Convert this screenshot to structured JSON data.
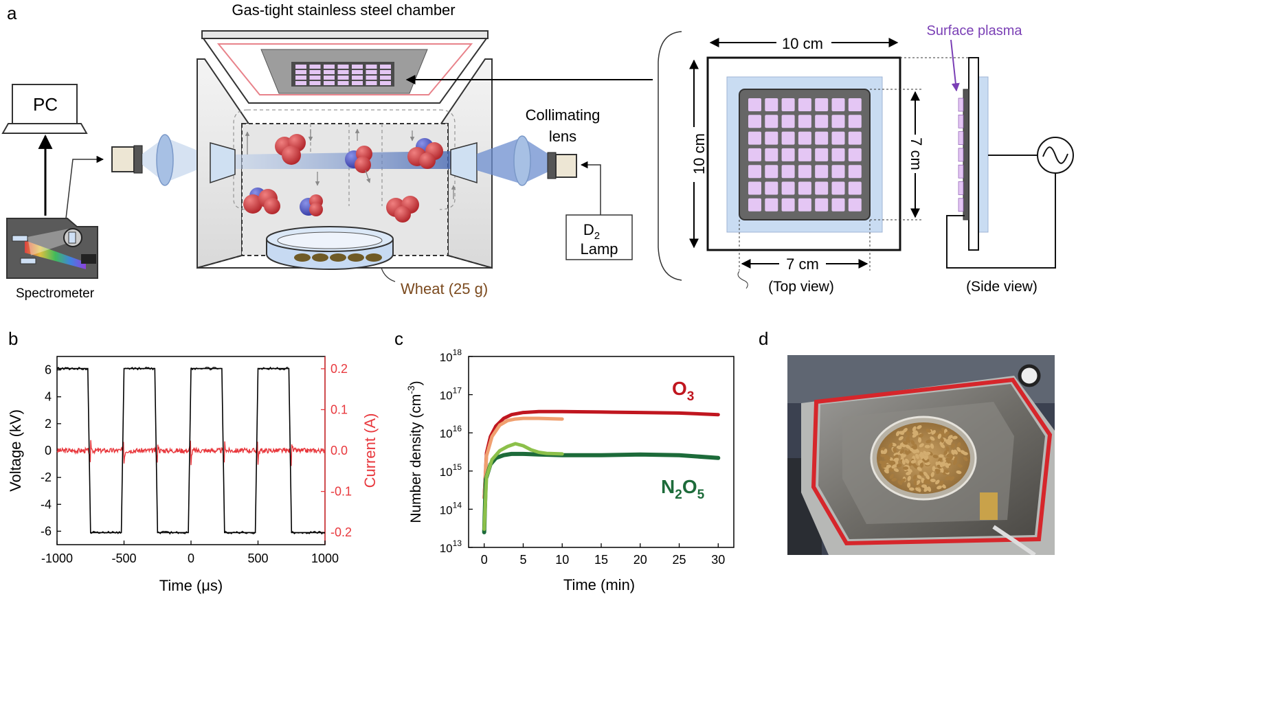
{
  "panel_a": {
    "letter": "a",
    "chamber_title": "Gas-tight stainless steel chamber",
    "pc_label": "PC",
    "spectrometer_label": "Spectrometer",
    "collimating_lens_label_1": "Collimating",
    "collimating_lens_label_2": "lens",
    "lamp_label_top": "D",
    "lamp_label_sub": "2",
    "lamp_label_bottom": "Lamp",
    "wheat_label": "Wheat (25 g)",
    "surface_plasma_label": "Surface plasma",
    "outer_width": "10 cm",
    "outer_height": "10 cm",
    "inner_height": "7 cm",
    "inner_width": "7 cm",
    "top_view_label": "(Top view)",
    "side_view_label": "(Side view)",
    "colors": {
      "plasma": "#e4c6f4",
      "plasma_label": "#7a3fb5",
      "wheat_text": "#7b4a1e",
      "beam": "#3b63b5"
    }
  },
  "panel_b": {
    "letter": "b",
    "xlabel": "Time (μs)",
    "ylabel_left": "Voltage (kV)",
    "ylabel_right": "Current (A)",
    "x_ticks": [
      "-1000",
      "-500",
      "0",
      "500",
      "1000"
    ],
    "y_left_ticks": [
      "6",
      "4",
      "2",
      "0",
      "-2",
      "-4",
      "-6"
    ],
    "y_right_ticks": [
      "0.2",
      "0.1",
      "0.0",
      "-0.1",
      "-0.2"
    ],
    "colors": {
      "voltage": "#000000",
      "current": "#e8383d"
    }
  },
  "panel_c": {
    "letter": "c",
    "xlabel": "Time (min)",
    "ylabel_main": "Number density (cm",
    "ylabel_exp": "-3",
    "ylabel_close": ")",
    "x_ticks": [
      "0",
      "5",
      "10",
      "15",
      "20",
      "25",
      "30"
    ],
    "y_base": "10",
    "y_exponents": [
      "13",
      "14",
      "15",
      "16",
      "17",
      "18"
    ],
    "o3_label_main": "O",
    "o3_label_sub": "3",
    "n2o5_label_n": "N",
    "n2o5_label_2": "2",
    "n2o5_label_o": "O",
    "n2o5_label_5": "5",
    "colors": {
      "o3": "#c0161f",
      "o3_short": "#f0a070",
      "n2o5": "#1d6b3a",
      "n2o5_short": "#8cc04a"
    }
  },
  "panel_d": {
    "letter": "d"
  },
  "chart_data": [
    {
      "type": "line",
      "panel": "b",
      "xlabel": "Time (μs)",
      "ylabel": "Voltage (kV)",
      "ylabel_right": "Current (A)",
      "xlim": [
        -1000,
        1000
      ],
      "ylim": [
        -7,
        7
      ],
      "ylim_right": [
        -0.23,
        0.23
      ],
      "series": [
        {
          "name": "Voltage (kV)",
          "axis": "left",
          "x": [
            -1000,
            -770,
            -750,
            -520,
            -500,
            -270,
            -250,
            -20,
            0,
            230,
            250,
            480,
            500,
            730,
            750,
            1000
          ],
          "y": [
            6.1,
            6.1,
            -6.1,
            -6.1,
            6.1,
            6.1,
            -6.1,
            -6.1,
            6.1,
            6.1,
            -6.1,
            -6.1,
            6.1,
            6.1,
            -6.1,
            -6.1
          ]
        },
        {
          "name": "Current (A)",
          "axis": "right",
          "spike_times": [
            -750,
            -500,
            -250,
            0,
            250,
            500,
            750
          ],
          "spike_amplitude": 0.05,
          "baseline": 0.0
        }
      ]
    },
    {
      "type": "line",
      "panel": "c",
      "xlabel": "Time (min)",
      "ylabel": "Number density (cm-3)",
      "xlim": [
        -2,
        32
      ],
      "ylim": [
        10000000000000.0,
        1e+18
      ],
      "yscale": "log",
      "series": [
        {
          "name": "O3",
          "x": [
            0,
            0.3,
            0.8,
            1.5,
            2.5,
            3.5,
            5,
            7,
            10,
            15,
            20,
            25,
            30
          ],
          "y": [
            200000000000000.0,
            3000000000000000.0,
            8000000000000000.0,
            1.5e+16,
            2.4e+16,
            3e+16,
            3.4e+16,
            3.6e+16,
            3.6e+16,
            3.5e+16,
            3.4e+16,
            3.3e+16,
            3e+16
          ]
        },
        {
          "name": "O3 (10 min)",
          "x": [
            0,
            0.3,
            1,
            2,
            3,
            4,
            5,
            7,
            10
          ],
          "y": [
            200000000000000.0,
            2500000000000000.0,
            8000000000000000.0,
            1.6e+16,
            2.1e+16,
            2.3e+16,
            2.4e+16,
            2.4e+16,
            2.3e+16
          ]
        },
        {
          "name": "N2O5",
          "x": [
            0,
            0.2,
            0.8,
            1.5,
            2.5,
            3.5,
            5,
            7,
            10,
            15,
            20,
            25,
            30
          ],
          "y": [
            25000000000000.0,
            600000000000000.0,
            1500000000000000.0,
            2200000000000000.0,
            2600000000000000.0,
            2800000000000000.0,
            2800000000000000.0,
            2700000000000000.0,
            2600000000000000.0,
            2600000000000000.0,
            2700000000000000.0,
            2600000000000000.0,
            2200000000000000.0
          ]
        },
        {
          "name": "N2O5 (10 min)",
          "x": [
            0,
            0.3,
            1,
            2,
            3,
            4,
            5,
            6,
            7,
            8,
            10
          ],
          "y": [
            30000000000000.0,
            700000000000000.0,
            2000000000000000.0,
            3400000000000000.0,
            4400000000000000.0,
            5200000000000000.0,
            4600000000000000.0,
            3600000000000000.0,
            3100000000000000.0,
            2900000000000000.0,
            2800000000000000.0
          ]
        }
      ]
    }
  ]
}
